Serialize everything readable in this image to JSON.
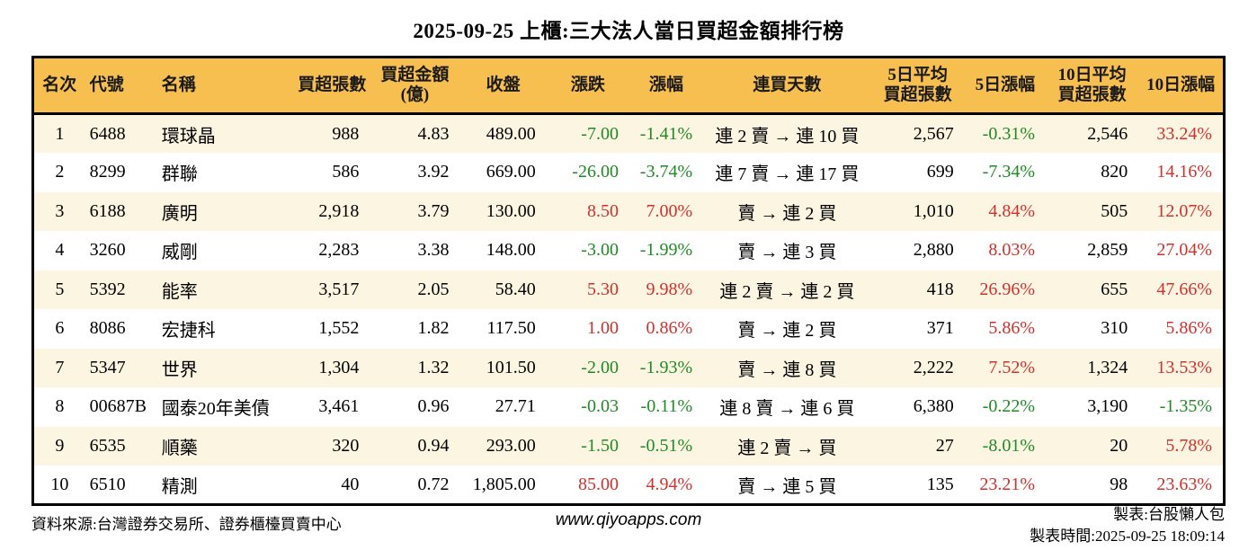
{
  "page": {
    "title": "2025-09-25 上櫃:三大法人當日買超金額排行榜"
  },
  "colors": {
    "header_bg": "#F7BF4F",
    "row_alt_bg": "#FCF5E2",
    "up_red": "#D2302C",
    "down_green": "#1F8B24",
    "border": "#000000"
  },
  "chart_data": {
    "type": "table",
    "title": "2025-09-25 上櫃:三大法人當日買超金額排行榜",
    "columns": [
      {
        "key": "rank",
        "label": "名次"
      },
      {
        "key": "code",
        "label": "代號"
      },
      {
        "key": "name",
        "label": "名稱"
      },
      {
        "key": "buy_vol",
        "label": "買超張數"
      },
      {
        "key": "buy_amt",
        "label": "買超金額",
        "label2": "(億)"
      },
      {
        "key": "close",
        "label": "收盤"
      },
      {
        "key": "change",
        "label": "漲跌"
      },
      {
        "key": "change_pct",
        "label": "漲幅"
      },
      {
        "key": "streak",
        "label": "連買天數"
      },
      {
        "key": "avg5",
        "label": "5日平均",
        "label2": "買超張數"
      },
      {
        "key": "pct5",
        "label": "5日漲幅"
      },
      {
        "key": "avg10",
        "label": "10日平均",
        "label2": "買超張數"
      },
      {
        "key": "pct10",
        "label": "10日漲幅"
      }
    ],
    "rows": [
      {
        "rank": "1",
        "code": "6488",
        "name": "環球晶",
        "buy_vol": "988",
        "buy_amt": "4.83",
        "close": "489.00",
        "change": "-7.00",
        "change_pct": "-1.41%",
        "streak": "連 2 賣 → 連 10 買",
        "avg5": "2,567",
        "pct5": "-0.31%",
        "avg10": "2,546",
        "pct10": "33.24%"
      },
      {
        "rank": "2",
        "code": "8299",
        "name": "群聯",
        "buy_vol": "586",
        "buy_amt": "3.92",
        "close": "669.00",
        "change": "-26.00",
        "change_pct": "-3.74%",
        "streak": "連 7 賣 → 連 17 買",
        "avg5": "699",
        "pct5": "-7.34%",
        "avg10": "820",
        "pct10": "14.16%"
      },
      {
        "rank": "3",
        "code": "6188",
        "name": "廣明",
        "buy_vol": "2,918",
        "buy_amt": "3.79",
        "close": "130.00",
        "change": "8.50",
        "change_pct": "7.00%",
        "streak": "賣 → 連 2 買",
        "avg5": "1,010",
        "pct5": "4.84%",
        "avg10": "505",
        "pct10": "12.07%"
      },
      {
        "rank": "4",
        "code": "3260",
        "name": "威剛",
        "buy_vol": "2,283",
        "buy_amt": "3.38",
        "close": "148.00",
        "change": "-3.00",
        "change_pct": "-1.99%",
        "streak": "賣 → 連 3 買",
        "avg5": "2,880",
        "pct5": "8.03%",
        "avg10": "2,859",
        "pct10": "27.04%"
      },
      {
        "rank": "5",
        "code": "5392",
        "name": "能率",
        "buy_vol": "3,517",
        "buy_amt": "2.05",
        "close": "58.40",
        "change": "5.30",
        "change_pct": "9.98%",
        "streak": "連 2 賣 → 連 2 買",
        "avg5": "418",
        "pct5": "26.96%",
        "avg10": "655",
        "pct10": "47.66%"
      },
      {
        "rank": "6",
        "code": "8086",
        "name": "宏捷科",
        "buy_vol": "1,552",
        "buy_amt": "1.82",
        "close": "117.50",
        "change": "1.00",
        "change_pct": "0.86%",
        "streak": "賣 → 連 2 買",
        "avg5": "371",
        "pct5": "5.86%",
        "avg10": "310",
        "pct10": "5.86%"
      },
      {
        "rank": "7",
        "code": "5347",
        "name": "世界",
        "buy_vol": "1,304",
        "buy_amt": "1.32",
        "close": "101.50",
        "change": "-2.00",
        "change_pct": "-1.93%",
        "streak": "賣 → 連 8 買",
        "avg5": "2,222",
        "pct5": "7.52%",
        "avg10": "1,324",
        "pct10": "13.53%"
      },
      {
        "rank": "8",
        "code": "00687B",
        "name": "國泰20年美債",
        "buy_vol": "3,461",
        "buy_amt": "0.96",
        "close": "27.71",
        "change": "-0.03",
        "change_pct": "-0.11%",
        "streak": "連 8 賣 → 連 6 買",
        "avg5": "6,380",
        "pct5": "-0.22%",
        "avg10": "3,190",
        "pct10": "-1.35%"
      },
      {
        "rank": "9",
        "code": "6535",
        "name": "順藥",
        "buy_vol": "320",
        "buy_amt": "0.94",
        "close": "293.00",
        "change": "-1.50",
        "change_pct": "-0.51%",
        "streak": "連 2 賣 → 買",
        "avg5": "27",
        "pct5": "-8.01%",
        "avg10": "20",
        "pct10": "5.78%"
      },
      {
        "rank": "10",
        "code": "6510",
        "name": "精測",
        "buy_vol": "40",
        "buy_amt": "0.72",
        "close": "1,805.00",
        "change": "85.00",
        "change_pct": "4.94%",
        "streak": "賣 → 連 5 買",
        "avg5": "135",
        "pct5": "23.21%",
        "avg10": "98",
        "pct10": "23.63%"
      }
    ]
  },
  "footer": {
    "source": "資料來源:台灣證券交易所、證券櫃檯買賣中心",
    "website": "www.qiyoapps.com",
    "made_by": "製表:台股懶人包",
    "made_time": "製表時間:2025-09-25 18:09:14"
  }
}
